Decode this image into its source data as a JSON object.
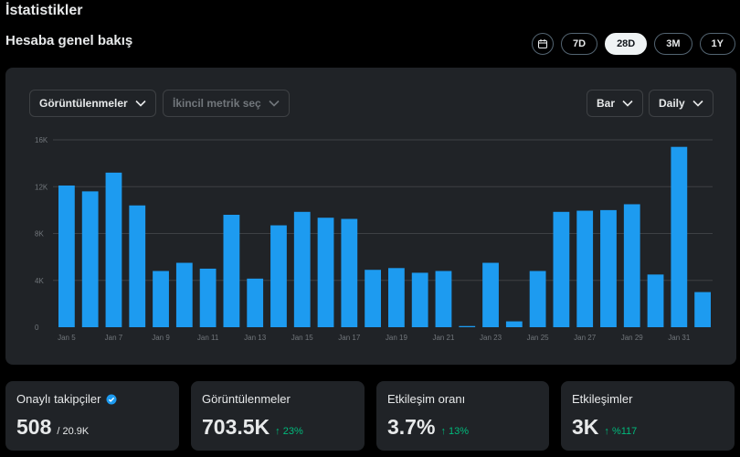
{
  "page": {
    "title": "İstatistikler",
    "section_title": "Hesaba genel bakış"
  },
  "range": {
    "calendar_icon": "calendar-icon",
    "options": [
      "7D",
      "28D",
      "3M",
      "1Y"
    ],
    "selected": "28D"
  },
  "controls": {
    "metric": "Görüntülenmeler",
    "secondary_metric_placeholder": "İkincil metrik seç",
    "chart_type": "Bar",
    "interval": "Daily"
  },
  "colors": {
    "bar": "#1d9bf0",
    "accent_green": "#00ba7c",
    "card_bg": "#202327"
  },
  "chart_data": {
    "type": "bar",
    "categories": [
      "Jan 5",
      "Jan 6",
      "Jan 7",
      "Jan 8",
      "Jan 9",
      "Jan 10",
      "Jan 11",
      "Jan 12",
      "Jan 13",
      "Jan 14",
      "Jan 15",
      "Jan 16",
      "Jan 17",
      "Jan 18",
      "Jan 19",
      "Jan 20",
      "Jan 21",
      "Jan 22",
      "Jan 23",
      "Jan 24",
      "Jan 25",
      "Jan 26",
      "Jan 27",
      "Jan 28",
      "Jan 29",
      "Jan 30",
      "Jan 31",
      "Feb 1"
    ],
    "values": [
      12100,
      11600,
      13200,
      10400,
      4800,
      5500,
      5000,
      9600,
      4150,
      8700,
      9850,
      9350,
      9250,
      4900,
      5050,
      4650,
      4800,
      100,
      5500,
      500,
      4800,
      9850,
      9950,
      10000,
      10500,
      4500,
      15400,
      3000
    ],
    "x_tick_labels": [
      "Jan 5",
      "Jan 7",
      "Jan 9",
      "Jan 11",
      "Jan 13",
      "Jan 15",
      "Jan 17",
      "Jan 19",
      "Jan 21",
      "Jan 23",
      "Jan 25",
      "Jan 27",
      "Jan 29",
      "Jan 31"
    ],
    "y_ticks": [
      "0",
      "4K",
      "8K",
      "12K",
      "16K"
    ],
    "ylim": [
      0,
      16000
    ],
    "grid": true,
    "legend": "none"
  },
  "stats": [
    {
      "label": "Onaylı takipçiler",
      "value": "508",
      "sub": "/ 20.9K",
      "delta": "",
      "verified": true
    },
    {
      "label": "Görüntülenmeler",
      "value": "703.5K",
      "sub": "",
      "delta": "↑ 23%",
      "verified": false
    },
    {
      "label": "Etkileşim oranı",
      "value": "3.7%",
      "sub": "",
      "delta": "↑ 13%",
      "verified": false
    },
    {
      "label": "Etkileşimler",
      "value": "3K",
      "sub": "",
      "delta": "↑ %117",
      "verified": false
    }
  ]
}
